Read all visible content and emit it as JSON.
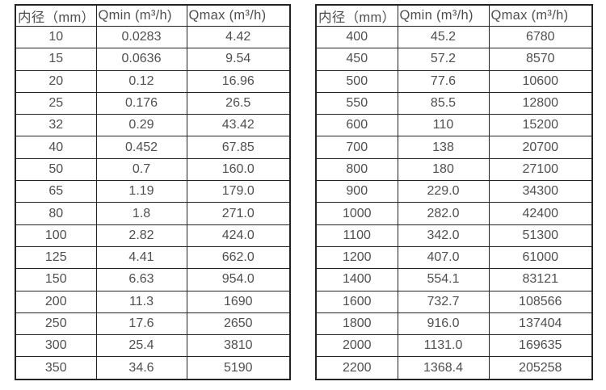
{
  "page": {
    "description": "Two side-by-side flow meter specification tables listing minimum and maximum flow rates by inner pipe diameter"
  },
  "colors": {
    "background": "#ffffff",
    "border": "#232323",
    "text": "#4f4f4f"
  },
  "chart_data": [
    {
      "type": "table",
      "columns": [
        "内径（mm）",
        "Qmin (m³/h)",
        "Qmax (m³/h)"
      ],
      "rows": [
        [
          "10",
          "0.0283",
          "4.42"
        ],
        [
          "15",
          "0.0636",
          "9.54"
        ],
        [
          "20",
          "0.12",
          "16.96"
        ],
        [
          "25",
          "0.176",
          "26.5"
        ],
        [
          "32",
          "0.29",
          "43.42"
        ],
        [
          "40",
          "0.452",
          "67.85"
        ],
        [
          "50",
          "0.7",
          "160.0"
        ],
        [
          "65",
          "1.19",
          "179.0"
        ],
        [
          "80",
          "1.8",
          "271.0"
        ],
        [
          "100",
          "2.82",
          "424.0"
        ],
        [
          "125",
          "4.41",
          "662.0"
        ],
        [
          "150",
          "6.63",
          "954.0"
        ],
        [
          "200",
          "11.3",
          "1690"
        ],
        [
          "250",
          "17.6",
          "2650"
        ],
        [
          "300",
          "25.4",
          "3810"
        ],
        [
          "350",
          "34.6",
          "5190"
        ]
      ]
    },
    {
      "type": "table",
      "columns": [
        "内径（mm）",
        "Qmin (m³/h)",
        "Qmax (m³/h)"
      ],
      "rows": [
        [
          "400",
          "45.2",
          "6780"
        ],
        [
          "450",
          "57.2",
          "8570"
        ],
        [
          "500",
          "77.6",
          "10600"
        ],
        [
          "550",
          "85.5",
          "12800"
        ],
        [
          "600",
          "110",
          "15200"
        ],
        [
          "700",
          "138",
          "20700"
        ],
        [
          "800",
          "180",
          "27100"
        ],
        [
          "900",
          "229.0",
          "34300"
        ],
        [
          "1000",
          "282.0",
          "42400"
        ],
        [
          "1100",
          "342.0",
          "51300"
        ],
        [
          "1200",
          "407.0",
          "61000"
        ],
        [
          "1400",
          "554.1",
          "83121"
        ],
        [
          "1600",
          "732.7",
          "108566"
        ],
        [
          "1800",
          "916.0",
          "137404"
        ],
        [
          "2000",
          "1131.0",
          "169635"
        ],
        [
          "2200",
          "1368.4",
          "205258"
        ]
      ]
    }
  ]
}
